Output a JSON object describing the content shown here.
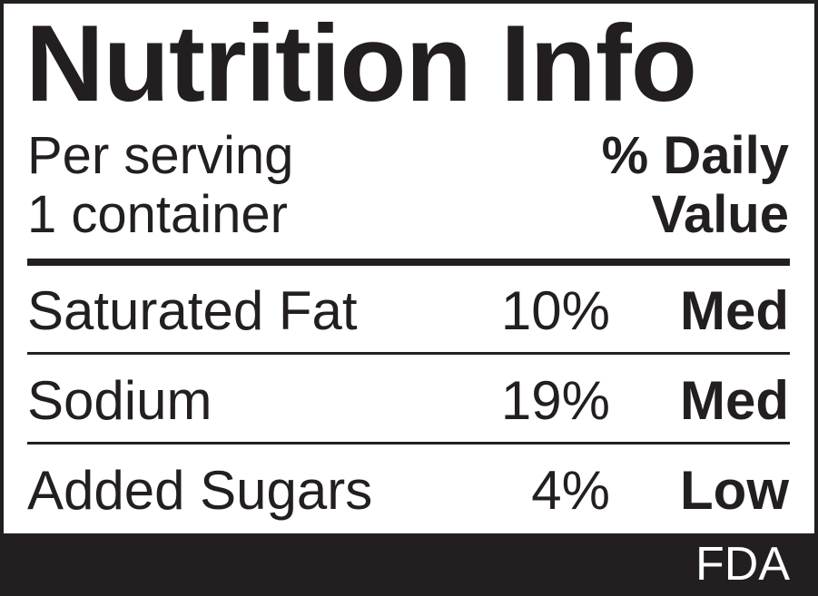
{
  "label": {
    "title": "Nutrition Info",
    "serving_line1": "Per serving",
    "serving_line2": "1 container",
    "daily_value_line1": "% Daily",
    "daily_value_line2": "Value",
    "rows": [
      {
        "nutrient": "Saturated Fat",
        "percent": "10%",
        "level": "Med"
      },
      {
        "nutrient": "Sodium",
        "percent": "19%",
        "level": "Med"
      },
      {
        "nutrient": "Added Sugars",
        "percent": "4%",
        "level": "Low"
      }
    ],
    "footer": "FDA"
  },
  "colors": {
    "ink": "#231f20",
    "background": "#ffffff"
  }
}
